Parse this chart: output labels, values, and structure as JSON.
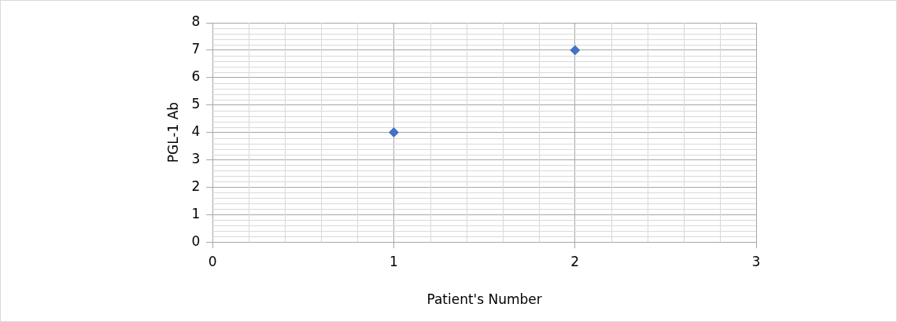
{
  "chart_data": {
    "type": "scatter",
    "xlabel": "Patient's Number",
    "ylabel": "PGL-1 Ab",
    "series": [
      {
        "color": "#4472c4",
        "x": [
          1,
          2
        ],
        "values": [
          4,
          7
        ]
      }
    ],
    "xlim": [
      0,
      3
    ],
    "xticks": [
      0,
      1,
      2,
      3
    ],
    "ylim": [
      0,
      8
    ],
    "yticks": [
      0,
      1,
      2,
      3,
      4,
      5,
      6,
      7,
      8
    ],
    "grid": true,
    "legend": false,
    "marker": "diamond"
  }
}
